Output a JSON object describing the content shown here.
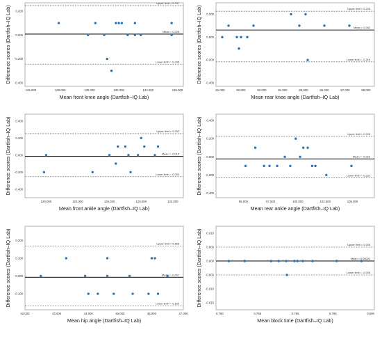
{
  "colors": {
    "point": "#2e75b6",
    "mean_line": "#222222",
    "limit_line": "#777777",
    "frame": "#b0b0b0",
    "background": "#ffffff"
  },
  "chart_data": [
    {
      "id": "front-knee",
      "type": "scatter",
      "xlabel": "Mean front knee angle (Dartfish–IQ Lab)",
      "ylabel": "Difference scores (Dartfish–IQ Lab)",
      "xlim": [
        125.6,
        136.4
      ],
      "ylim": [
        -0.43,
        0.27
      ],
      "xticks": [
        "126.000",
        "128.000",
        "130.000",
        "132.000",
        "134.000",
        "136.000"
      ],
      "yticks": [
        "0.200",
        "0.000",
        "-0.200",
        "-0.400"
      ],
      "upper_limit": 0.247,
      "mean": 0.008,
      "lower_limit": -0.245,
      "upper_label": "Upper limit = 0.247",
      "mean_label": "Mean = 0.008",
      "lower_label": "Lower limit = -0.245",
      "x": [
        127.9,
        129.9,
        130.4,
        131.0,
        131.2,
        131.5,
        131.8,
        132.0,
        132.2,
        132.6,
        133.1,
        133.1,
        133.5,
        135.6,
        135.6
      ],
      "y": [
        0.1,
        0.0,
        0.1,
        0.0,
        -0.2,
        -0.3,
        0.1,
        0.1,
        0.1,
        0.0,
        0.0,
        0.1,
        0.0,
        0.1,
        0.0
      ]
    },
    {
      "id": "rear-knee",
      "type": "scatter",
      "xlabel": "Mean rear knee angle (Dartfish–IQ Lab)",
      "ylabel": "Difference scores (Dartfish–IQ Lab)",
      "xlim": [
        80.8,
        88.4
      ],
      "ylim": [
        -0.43,
        0.3
      ],
      "xticks": [
        "81.000",
        "82.000",
        "83.000",
        "84.000",
        "85.000",
        "86.000",
        "87.000",
        "88.000"
      ],
      "yticks": [
        "0.200",
        "0.000",
        "-0.200",
        "-0.400"
      ],
      "upper_limit": 0.226,
      "mean": 0.062,
      "lower_limit": -0.216,
      "upper_label": "Upper limit = 0.226",
      "mean_label": "Mean = 0.062",
      "lower_label": "Lower limit = -0.216",
      "x": [
        81.1,
        81.4,
        81.8,
        81.9,
        82.0,
        82.3,
        82.6,
        84.4,
        84.8,
        85.1,
        85.2,
        86.0,
        87.2
      ],
      "y": [
        0.0,
        0.1,
        0.0,
        -0.1,
        0.0,
        0.0,
        0.1,
        0.2,
        0.1,
        0.2,
        -0.2,
        0.1,
        0.1
      ]
    },
    {
      "id": "front-ankle",
      "type": "scatter",
      "xlabel": "Mean front ankle angle (Dartfish–IQ Lab)",
      "ylabel": "Difference scores (Dartfish–IQ Lab)",
      "xlim": [
        118.0,
        133.0
      ],
      "ylim": [
        -0.5,
        0.48
      ],
      "xticks": [
        "120.000",
        "123.000",
        "126.000",
        "129.000",
        "132.000"
      ],
      "yticks": [
        "0.400",
        "0.200",
        "0.000",
        "-0.200",
        "-0.400"
      ],
      "upper_limit": 0.252,
      "mean": -0.015,
      "lower_limit": -0.253,
      "upper_label": "Upper limit = 0.252",
      "mean_label": "Mean = -0.015",
      "lower_label": "Lower limit = -0.253",
      "x": [
        119.8,
        120.0,
        124.4,
        126.0,
        126.6,
        126.8,
        127.5,
        127.8,
        128.0,
        128.7,
        129.0,
        129.3,
        130.3,
        130.6
      ],
      "y": [
        -0.2,
        0.0,
        -0.2,
        0.0,
        -0.1,
        0.1,
        0.1,
        0.0,
        -0.2,
        0.0,
        0.2,
        0.1,
        0.0,
        0.1
      ]
    },
    {
      "id": "rear-ankle",
      "type": "scatter",
      "xlabel": "Mean rear ankle angle (Dartfish–IQ Lab)",
      "ylabel": "Difference scores (Dartfish–IQ Lab)",
      "xlim": [
        92.5,
        107.0
      ],
      "ylim": [
        -0.45,
        0.47
      ],
      "xticks": [
        "95.000",
        "97.500",
        "100.000",
        "102.500",
        "105.000"
      ],
      "yticks": [
        "0.400",
        "0.200",
        "0.000",
        "-0.200",
        "-0.400"
      ],
      "upper_limit": 0.226,
      "mean": -0.023,
      "lower_limit": -0.231,
      "upper_label": "Upper limit = 0.226",
      "mean_label": "Mean = -0.023",
      "lower_label": "Lower limit = -0.231",
      "x": [
        95.2,
        96.1,
        96.9,
        97.4,
        98.1,
        98.8,
        99.3,
        99.8,
        100.2,
        100.5,
        100.9,
        101.3,
        101.6,
        102.6,
        104.9
      ],
      "y": [
        -0.1,
        0.1,
        -0.1,
        -0.1,
        -0.1,
        0.0,
        -0.1,
        0.2,
        0.0,
        0.1,
        0.1,
        -0.1,
        -0.1,
        -0.2,
        -0.1
      ]
    },
    {
      "id": "hip",
      "type": "scatter",
      "xlabel": "Mean hip angle (Dartfish–IQ Lab)",
      "ylabel": "Difference scores (Dartfish–IQ Lab)",
      "xlim": [
        42.0,
        47.0
      ],
      "ylim": [
        -0.19,
        0.28
      ],
      "xticks": [
        "42.000",
        "43.000",
        "44.000",
        "45.000",
        "46.000",
        "47.000"
      ],
      "yticks": [
        "0.200",
        "0.100",
        "0.000",
        "-0.100"
      ],
      "upper_limit": 0.168,
      "mean": -0.007,
      "lower_limit": -0.169,
      "upper_label": "Upper limit = 0.168",
      "mean_label": "Mean = -0.007",
      "lower_label": "Lower limit = -0.169",
      "x": [
        42.5,
        43.3,
        43.9,
        44.0,
        44.3,
        44.6,
        44.6,
        44.8,
        45.3,
        45.4,
        45.9,
        46.0,
        46.1,
        46.2,
        46.5
      ],
      "y": [
        0.0,
        0.1,
        0.0,
        -0.1,
        -0.1,
        0.1,
        0.0,
        -0.1,
        0.0,
        -0.1,
        -0.1,
        0.1,
        0.1,
        -0.1,
        0.0
      ]
    },
    {
      "id": "block-time",
      "type": "scatter",
      "xlabel": "Mean block time (Dartfish–IQ Lab)",
      "ylabel": "Difference scores (Dartfish–IQ Lab)",
      "xlim": [
        0.7795,
        0.8005
      ],
      "ylim": [
        -0.0175,
        0.0125
      ],
      "xticks": [
        "0.780",
        "0.785",
        "0.790",
        "0.795",
        "0.800"
      ],
      "yticks": [
        "0.010",
        "0.005",
        "0.000",
        "-0.005",
        "-0.010",
        "-0.015"
      ],
      "upper_limit": 0.005,
      "mean": 2e-05,
      "lower_limit": -0.005,
      "upper_label": "Upper limit = 0.005",
      "mean_label": "Mean = 0.00002",
      "lower_label": "Lower limit = -0.005",
      "x": [
        0.7812,
        0.7833,
        0.7868,
        0.7878,
        0.7888,
        0.7889,
        0.7899,
        0.7903,
        0.791,
        0.7923,
        0.7955,
        0.7988
      ],
      "y": [
        0.0,
        0.0,
        0.0,
        0.0,
        0.0,
        -0.005,
        0.0,
        0.0,
        0.0,
        0.0,
        0.0,
        0.0
      ]
    }
  ]
}
